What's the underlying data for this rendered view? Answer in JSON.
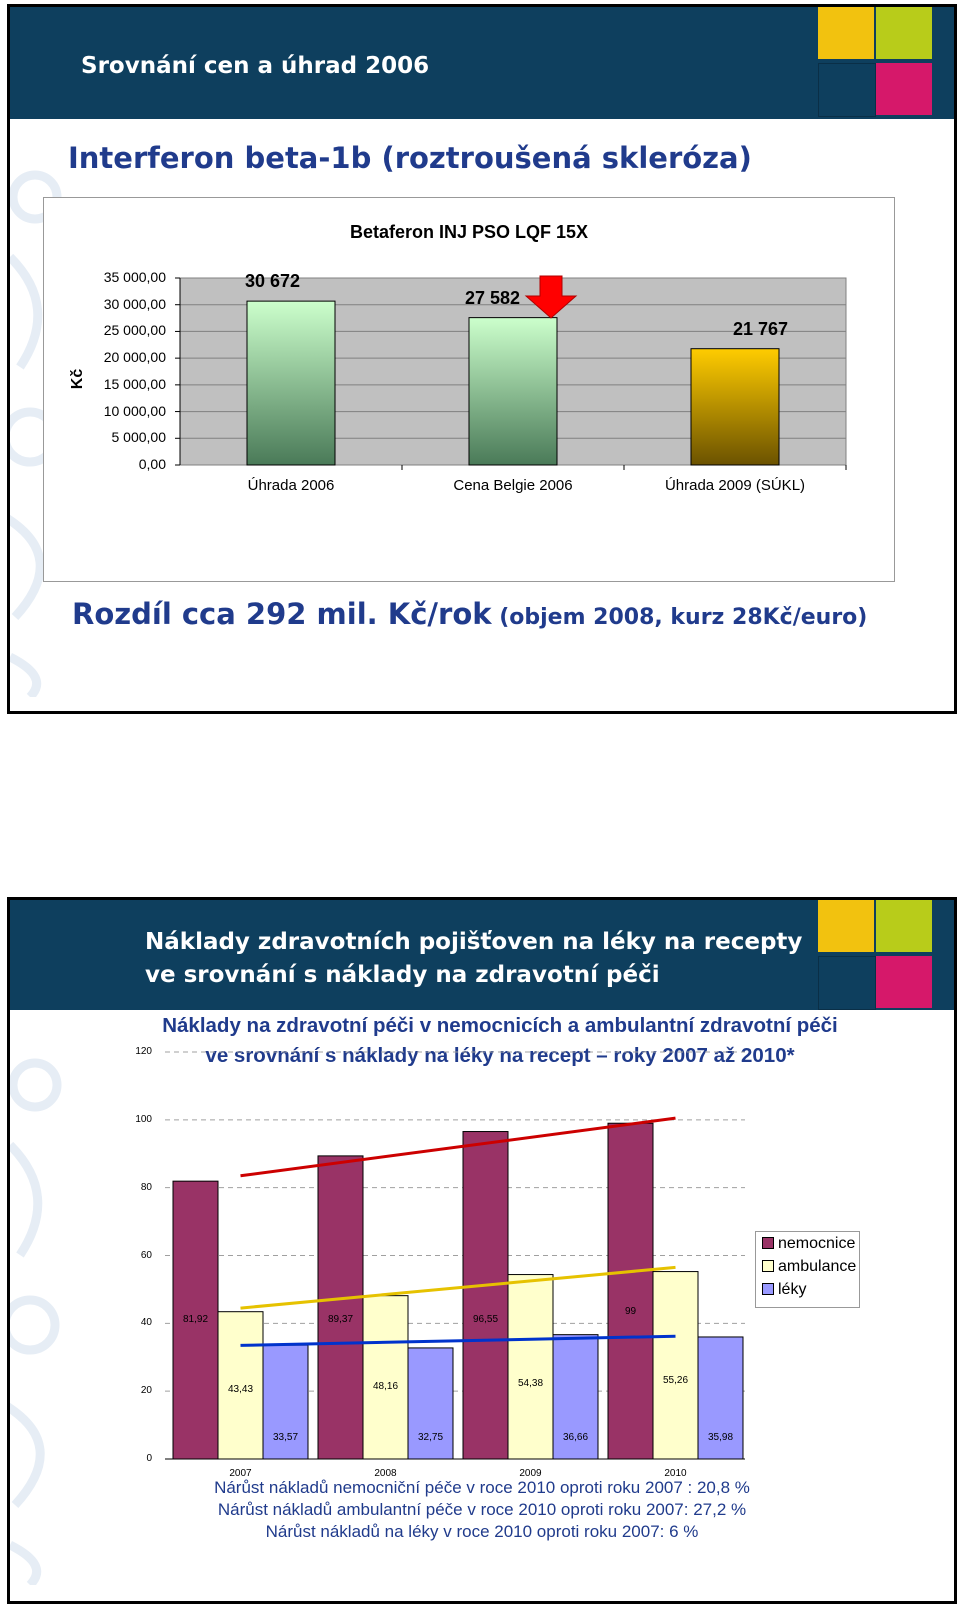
{
  "slide1": {
    "header_title": "Srovnání cen a úhrad 2006",
    "main_title": "Interferon beta-1b (roztroušená skleróza)",
    "subtitle_big": "Rozdíl cca 292 mil. Kč/rok",
    "subtitle_small": " (objem 2008, kurz 28Kč/euro)",
    "colors": {
      "header": "#0e3f5e",
      "title": "#203b8c",
      "bar_green": "#7dbf8c",
      "bar_gold": "#ffcc00",
      "arrow": "#ff0000"
    }
  },
  "slide2": {
    "header_title_line1": "Náklady zdravotních pojišťoven na léky na recepty",
    "header_title_line2": "ve srovnání s náklady na zdravotní péči",
    "notes": [
      "Nárůst nákladů nemocniční péče v roce 2010 oproti roku 2007 : 20,8 %",
      "Nárůst nákladů ambulantní péče v roce 2010 oproti roku 2007: 27,2 %",
      "Nárůst nákladů na léky v roce 2010 oproti roku 2007: 6 %"
    ],
    "colors": {
      "nemocnice": "#993366",
      "ambulance": "#ffffcc",
      "leky": "#9999ff",
      "trend_nemocnice": "#cc0000",
      "trend_ambulance": "#e6c200",
      "trend_leky": "#0033cc"
    }
  },
  "chart_data": [
    {
      "type": "bar",
      "title": "Betaferon INJ PSO LQF 15X",
      "ylabel": "Kč",
      "categories": [
        "Úhrada 2006",
        "Cena Belgie 2006",
        "Úhrada 2009 (SÚKL)"
      ],
      "values": [
        30672,
        27582,
        21767
      ],
      "value_labels": [
        "30 672",
        "27 582",
        "21 767"
      ],
      "ylim": [
        0,
        35000
      ],
      "yticks": [
        "0,00",
        "5 000,00",
        "10 000,00",
        "15 000,00",
        "20 000,00",
        "25 000,00",
        "30 000,00",
        "35 000,00"
      ],
      "grid": true,
      "annotation": "red down arrow above Cena Belgie 2006"
    },
    {
      "type": "bar",
      "title_line1": "Náklady na zdravotní péči v nemocnicích a ambulantní zdravotní péči",
      "title_line2": "ve srovnání s náklady na léky na recept – roky 2007 až 2010*",
      "categories": [
        "2007",
        "2008",
        "2009",
        "2010"
      ],
      "series": [
        {
          "name": "nemocnice",
          "values": [
            81.92,
            89.37,
            96.55,
            99
          ],
          "labels": [
            "81,92",
            "89,37",
            "96,55",
            "99"
          ]
        },
        {
          "name": "ambulance",
          "values": [
            43.43,
            48.16,
            54.38,
            55.26
          ],
          "labels": [
            "43,43",
            "48,16",
            "54,38",
            "55,26"
          ]
        },
        {
          "name": "léky",
          "values": [
            33.57,
            32.75,
            36.66,
            35.98
          ],
          "labels": [
            "33,57",
            "32,75",
            "36,66",
            "35,98"
          ]
        }
      ],
      "ylim": [
        0,
        120
      ],
      "yticks": [
        "0",
        "20",
        "40",
        "60",
        "80",
        "100",
        "120"
      ],
      "grid": true,
      "legend": "right",
      "trendlines": [
        {
          "series": "nemocnice",
          "from": 83.5,
          "to": 100.5
        },
        {
          "series": "ambulance",
          "from": 44.5,
          "to": 56.5
        },
        {
          "series": "léky",
          "from": 33.5,
          "to": 36.2
        }
      ]
    }
  ]
}
